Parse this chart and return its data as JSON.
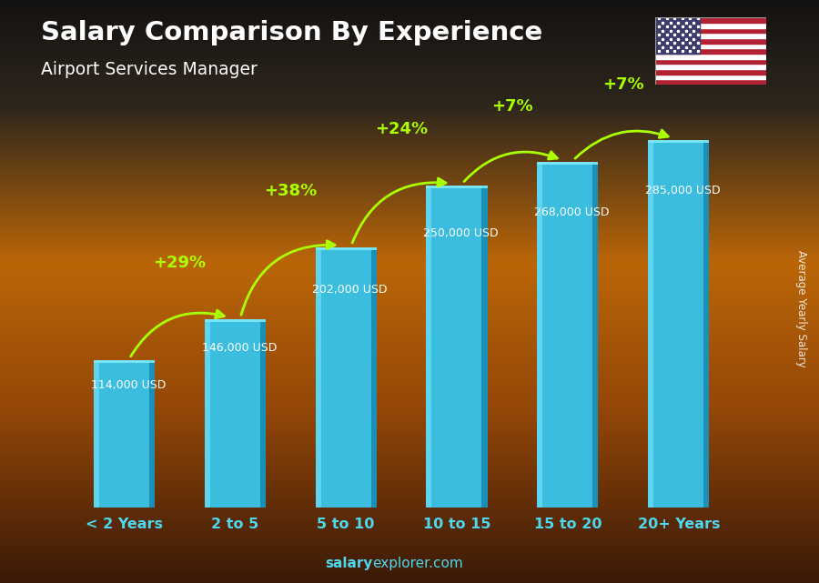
{
  "title": "Salary Comparison By Experience",
  "subtitle": "Airport Services Manager",
  "categories": [
    "< 2 Years",
    "2 to 5",
    "5 to 10",
    "10 to 15",
    "15 to 20",
    "20+ Years"
  ],
  "values": [
    114000,
    146000,
    202000,
    250000,
    268000,
    285000
  ],
  "labels": [
    "114,000 USD",
    "146,000 USD",
    "202,000 USD",
    "250,000 USD",
    "268,000 USD",
    "285,000 USD"
  ],
  "pct_changes": [
    "+29%",
    "+38%",
    "+24%",
    "+7%",
    "+7%"
  ],
  "bar_color_main": "#3bbde0",
  "bar_color_left": "#5dd5f0",
  "bar_color_right": "#1a90b8",
  "bar_color_top": "#7eeaf8",
  "ylabel": "Average Yearly Salary",
  "arrow_color": "#aaff00",
  "pct_color": "#aaff00",
  "label_color": "#ffffff",
  "title_color": "#ffffff",
  "subtitle_color": "#ffffff",
  "xtick_color": "#4dd8f0",
  "watermark_bold": "salary",
  "watermark_normal": "explorer.com",
  "figsize": [
    9.0,
    6.41
  ],
  "dpi": 100
}
